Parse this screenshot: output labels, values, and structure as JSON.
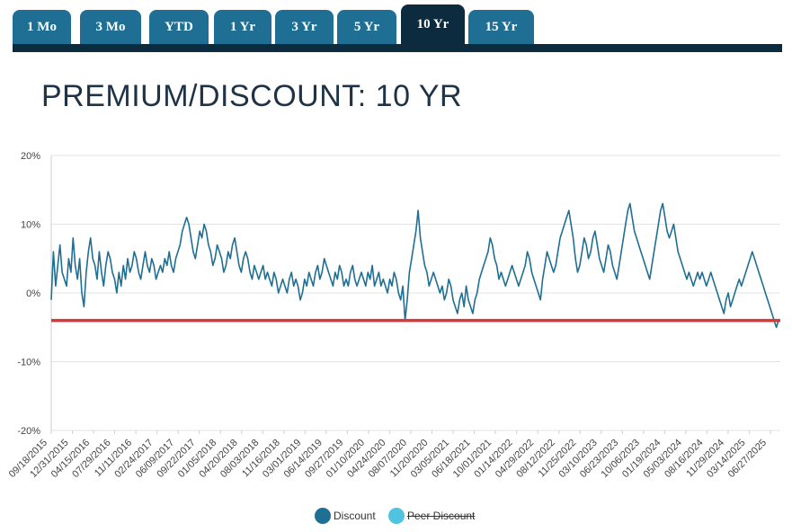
{
  "tabs": [
    {
      "label": "1 Mo",
      "active": false
    },
    {
      "label": "3 Mo",
      "active": false
    },
    {
      "label": "YTD",
      "active": false
    },
    {
      "label": "1 Yr",
      "active": false
    },
    {
      "label": "3 Yr",
      "active": false
    },
    {
      "label": "5 Yr",
      "active": false
    },
    {
      "label": "10 Yr",
      "active": true
    },
    {
      "label": "15 Yr",
      "active": false
    }
  ],
  "title": "PREMIUM/DISCOUNT: 10 YR",
  "legend": {
    "discount_label": "Discount",
    "peer_label": "Peer Discount"
  },
  "colors": {
    "discount": "#1f6f94",
    "peer": "#4fc3e0",
    "reference": "#d9383a",
    "tab": "#1f6f94",
    "tab_active": "#0c2b3f"
  },
  "chart_data": {
    "type": "line",
    "ylim": [
      -20,
      20
    ],
    "yticks": [
      "20%",
      "10%",
      "0%",
      "-10%",
      "-20%"
    ],
    "x_ticks": [
      "09/18/2015",
      "12/31/2015",
      "04/15/2016",
      "07/29/2016",
      "11/11/2016",
      "02/24/2017",
      "06/09/2017",
      "09/22/2017",
      "01/05/2018",
      "04/20/2018",
      "08/03/2018",
      "11/16/2018",
      "03/01/2019",
      "06/14/2019",
      "09/27/2019",
      "01/10/2020",
      "04/24/2020",
      "08/07/2020",
      "11/20/2020",
      "03/05/2021",
      "06/18/2021",
      "10/01/2021",
      "01/14/2022",
      "04/29/2022",
      "08/12/2022",
      "11/25/2022",
      "03/10/2023",
      "06/23/2023",
      "10/06/2023",
      "01/19/2024",
      "05/03/2024",
      "08/16/2024",
      "11/29/2024",
      "03/14/2025",
      "06/27/2025"
    ],
    "reference_line": -4,
    "series": [
      {
        "name": "Discount",
        "values": [
          -1,
          6,
          1,
          4,
          7,
          3,
          2,
          1,
          5,
          3,
          8,
          4,
          2,
          5,
          0,
          -2,
          3,
          6,
          8,
          5,
          4,
          2,
          6,
          3,
          1,
          4,
          6,
          5,
          3,
          2,
          0,
          3,
          1,
          4,
          2,
          5,
          3,
          4,
          6,
          5,
          3,
          2,
          4,
          6,
          4,
          3,
          5,
          4,
          2,
          3,
          4,
          3,
          5,
          4,
          6,
          4,
          3,
          5,
          6,
          7,
          9,
          10,
          11,
          10,
          8,
          6,
          5,
          7,
          9,
          8,
          10,
          9,
          7,
          6,
          4,
          5,
          7,
          6,
          5,
          3,
          4,
          6,
          5,
          7,
          8,
          6,
          4,
          3,
          5,
          6,
          5,
          3,
          2,
          4,
          3,
          2,
          3,
          4,
          2,
          3,
          2,
          1,
          3,
          2,
          0,
          1,
          2,
          1,
          0,
          2,
          3,
          1,
          2,
          1,
          -1,
          0,
          2,
          1,
          3,
          2,
          1,
          3,
          4,
          2,
          3,
          5,
          4,
          3,
          2,
          1,
          3,
          2,
          4,
          3,
          1,
          2,
          1,
          3,
          4,
          2,
          1,
          2,
          3,
          2,
          1,
          3,
          2,
          4,
          1,
          2,
          3,
          1,
          2,
          1,
          0,
          2,
          1,
          3,
          2,
          0,
          -1,
          1,
          -4,
          -1,
          3,
          5,
          7,
          9,
          12,
          8,
          6,
          4,
          3,
          1,
          2,
          3,
          2,
          1,
          0,
          1,
          -1,
          0,
          2,
          1,
          -1,
          -2,
          -3,
          -1,
          0,
          -2,
          1,
          -1,
          -2,
          -3,
          -1,
          0,
          2,
          3,
          4,
          5,
          6,
          8,
          7,
          5,
          4,
          2,
          3,
          2,
          1,
          2,
          3,
          4,
          3,
          2,
          1,
          2,
          3,
          4,
          6,
          5,
          3,
          2,
          1,
          0,
          -1,
          2,
          4,
          6,
          5,
          4,
          3,
          4,
          6,
          8,
          9,
          10,
          11,
          12,
          10,
          8,
          5,
          3,
          4,
          6,
          8,
          7,
          5,
          6,
          8,
          9,
          7,
          5,
          4,
          3,
          5,
          7,
          6,
          4,
          3,
          2,
          4,
          6,
          8,
          10,
          12,
          13,
          11,
          9,
          8,
          7,
          6,
          5,
          4,
          3,
          2,
          4,
          6,
          8,
          10,
          12,
          13,
          11,
          9,
          8,
          9,
          10,
          8,
          6,
          5,
          4,
          3,
          2,
          3,
          2,
          1,
          2,
          3,
          2,
          3,
          2,
          1,
          2,
          3,
          2,
          1,
          0,
          -1,
          -2,
          -3,
          -1,
          0,
          -2,
          -1,
          0,
          1,
          2,
          1,
          2,
          3,
          4,
          5,
          6,
          5,
          4,
          3,
          2,
          1,
          0,
          -1,
          -2,
          -3,
          -4,
          -5,
          -4
        ]
      },
      {
        "name": "Peer Discount",
        "values": [],
        "hidden": true
      }
    ]
  }
}
